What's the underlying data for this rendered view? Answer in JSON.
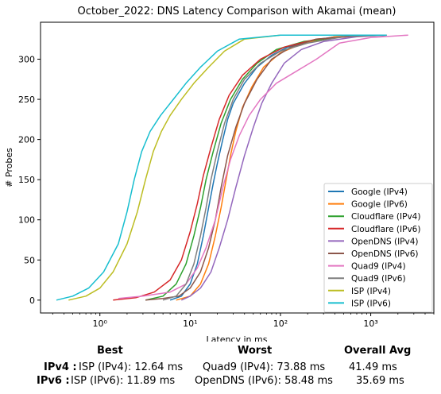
{
  "chart_data": {
    "type": "line",
    "title": "October_2022: DNS Latency Comparison with Akamai (mean)",
    "xlabel": "Latency in ms",
    "ylabel": "# Probes",
    "xscale": "log",
    "xlim": [
      0.22,
      5000
    ],
    "ylim": [
      -16,
      346
    ],
    "xticks": [
      {
        "value": 1,
        "label": "10⁰"
      },
      {
        "value": 10,
        "label": "10¹"
      },
      {
        "value": 100,
        "label": "10²"
      },
      {
        "value": 1000,
        "label": "10³"
      }
    ],
    "yticks": [
      0,
      50,
      100,
      150,
      200,
      250,
      300
    ],
    "grid": false,
    "legend": "right",
    "series": [
      {
        "name": "Google (IPv4)",
        "color": "#1f77b4",
        "points": [
          [
            6,
            0
          ],
          [
            8,
            5
          ],
          [
            10,
            20
          ],
          [
            12,
            45
          ],
          [
            14,
            80
          ],
          [
            16,
            115
          ],
          [
            18,
            145
          ],
          [
            20,
            170
          ],
          [
            23,
            200
          ],
          [
            26,
            225
          ],
          [
            30,
            245
          ],
          [
            40,
            270
          ],
          [
            55,
            290
          ],
          [
            80,
            305
          ],
          [
            120,
            315
          ],
          [
            200,
            322
          ],
          [
            400,
            328
          ],
          [
            1500,
            330
          ]
        ]
      },
      {
        "name": "Google (IPv6)",
        "color": "#ff7f0e",
        "points": [
          [
            7,
            0
          ],
          [
            10,
            5
          ],
          [
            13,
            20
          ],
          [
            16,
            45
          ],
          [
            19,
            80
          ],
          [
            22,
            115
          ],
          [
            25,
            150
          ],
          [
            28,
            180
          ],
          [
            32,
            210
          ],
          [
            38,
            240
          ],
          [
            48,
            265
          ],
          [
            65,
            290
          ],
          [
            100,
            308
          ],
          [
            180,
            320
          ],
          [
            400,
            328
          ],
          [
            1500,
            330
          ]
        ]
      },
      {
        "name": "Cloudflare (IPv4)",
        "color": "#2ca02c",
        "points": [
          [
            3.2,
            0
          ],
          [
            5,
            5
          ],
          [
            7,
            20
          ],
          [
            9,
            45
          ],
          [
            11,
            80
          ],
          [
            13,
            115
          ],
          [
            15,
            150
          ],
          [
            18,
            185
          ],
          [
            22,
            220
          ],
          [
            28,
            250
          ],
          [
            38,
            275
          ],
          [
            55,
            295
          ],
          [
            90,
            312
          ],
          [
            180,
            322
          ],
          [
            500,
            328
          ],
          [
            1500,
            330
          ]
        ]
      },
      {
        "name": "Cloudflare (IPv6)",
        "color": "#d62728",
        "points": [
          [
            1.4,
            0
          ],
          [
            2.5,
            3
          ],
          [
            4,
            10
          ],
          [
            6,
            25
          ],
          [
            8,
            50
          ],
          [
            10,
            85
          ],
          [
            12,
            120
          ],
          [
            14,
            155
          ],
          [
            17,
            190
          ],
          [
            21,
            225
          ],
          [
            27,
            255
          ],
          [
            38,
            280
          ],
          [
            60,
            300
          ],
          [
            110,
            315
          ],
          [
            250,
            325
          ],
          [
            1000,
            330
          ]
        ]
      },
      {
        "name": "OpenDNS (IPv4)",
        "color": "#9467bd",
        "points": [
          [
            8,
            0
          ],
          [
            10,
            5
          ],
          [
            13,
            15
          ],
          [
            17,
            35
          ],
          [
            21,
            65
          ],
          [
            26,
            100
          ],
          [
            32,
            140
          ],
          [
            40,
            180
          ],
          [
            50,
            215
          ],
          [
            62,
            245
          ],
          [
            80,
            270
          ],
          [
            110,
            295
          ],
          [
            170,
            312
          ],
          [
            300,
            322
          ],
          [
            700,
            328
          ],
          [
            1500,
            330
          ]
        ]
      },
      {
        "name": "OpenDNS (IPv6)",
        "color": "#8c564b",
        "points": [
          [
            3.2,
            0
          ],
          [
            5,
            2
          ],
          [
            7.5,
            5
          ],
          [
            10,
            15
          ],
          [
            13,
            35
          ],
          [
            16,
            65
          ],
          [
            19,
            100
          ],
          [
            22,
            140
          ],
          [
            26,
            180
          ],
          [
            32,
            215
          ],
          [
            40,
            245
          ],
          [
            55,
            275
          ],
          [
            80,
            300
          ],
          [
            130,
            315
          ],
          [
            250,
            325
          ],
          [
            800,
            330
          ]
        ]
      },
      {
        "name": "Quad9 (IPv4)",
        "color": "#e377c2",
        "points": [
          [
            1.6,
            2
          ],
          [
            3,
            5
          ],
          [
            6,
            10
          ],
          [
            9,
            20
          ],
          [
            12,
            40
          ],
          [
            15,
            65
          ],
          [
            19,
            100
          ],
          [
            23,
            140
          ],
          [
            28,
            175
          ],
          [
            35,
            205
          ],
          [
            45,
            230
          ],
          [
            60,
            250
          ],
          [
            90,
            270
          ],
          [
            150,
            285
          ],
          [
            250,
            300
          ],
          [
            450,
            320
          ],
          [
            1000,
            327
          ],
          [
            2600,
            330
          ]
        ]
      },
      {
        "name": "Quad9 (IPv6)",
        "color": "#7f7f7f",
        "points": [
          [
            5,
            0
          ],
          [
            7,
            5
          ],
          [
            9,
            20
          ],
          [
            11,
            45
          ],
          [
            13,
            80
          ],
          [
            15,
            115
          ],
          [
            17,
            150
          ],
          [
            20,
            185
          ],
          [
            24,
            220
          ],
          [
            30,
            250
          ],
          [
            40,
            275
          ],
          [
            60,
            295
          ],
          [
            100,
            310
          ],
          [
            200,
            320
          ],
          [
            500,
            328
          ],
          [
            1500,
            330
          ]
        ]
      },
      {
        "name": "ISP (IPv4)",
        "color": "#bcbd22",
        "points": [
          [
            0.45,
            0
          ],
          [
            0.7,
            5
          ],
          [
            1,
            15
          ],
          [
            1.4,
            35
          ],
          [
            2,
            70
          ],
          [
            2.6,
            110
          ],
          [
            3.2,
            150
          ],
          [
            3.9,
            185
          ],
          [
            4.8,
            210
          ],
          [
            6,
            230
          ],
          [
            8,
            250
          ],
          [
            11,
            270
          ],
          [
            16,
            290
          ],
          [
            24,
            310
          ],
          [
            40,
            325
          ],
          [
            100,
            330
          ],
          [
            1500,
            330
          ]
        ]
      },
      {
        "name": "ISP (IPv6)",
        "color": "#17becf",
        "points": [
          [
            0.33,
            0
          ],
          [
            0.5,
            5
          ],
          [
            0.75,
            15
          ],
          [
            1.1,
            35
          ],
          [
            1.6,
            70
          ],
          [
            2,
            110
          ],
          [
            2.4,
            150
          ],
          [
            2.9,
            185
          ],
          [
            3.6,
            210
          ],
          [
            4.7,
            230
          ],
          [
            6.5,
            250
          ],
          [
            9,
            270
          ],
          [
            13,
            290
          ],
          [
            20,
            310
          ],
          [
            35,
            325
          ],
          [
            100,
            330
          ],
          [
            1500,
            330
          ]
        ]
      }
    ]
  },
  "summary": {
    "headers": {
      "best": "Best",
      "worst": "Worst",
      "avg": "Overall Avg"
    },
    "rows": [
      {
        "label": "IPv4 :",
        "best": "ISP (IPv4): 12.64 ms",
        "worst": "Quad9 (IPv4): 73.88 ms",
        "avg": "41.49 ms"
      },
      {
        "label": "IPv6 :",
        "best": "ISP (IPv6): 11.89 ms",
        "worst": "OpenDNS (IPv6): 58.48 ms",
        "avg": "35.69 ms"
      }
    ]
  }
}
